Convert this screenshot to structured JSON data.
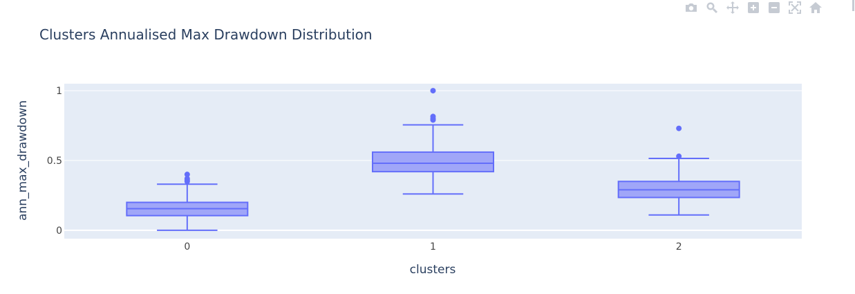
{
  "chart_data": {
    "type": "box",
    "title": "Clusters Annualised Max Drawdown Distribution",
    "xlabel": "clusters",
    "ylabel": "ann_max_drawdown",
    "categories": [
      "0",
      "1",
      "2"
    ],
    "yticks": [
      {
        "value": 0,
        "label": "0"
      },
      {
        "value": 0.5,
        "label": "0.5"
      },
      {
        "value": 1,
        "label": "1"
      }
    ],
    "ylim": [
      -0.06,
      1.05
    ],
    "grid": true,
    "boxes": [
      {
        "category": "0",
        "lower_whisker": 0.0,
        "q1": 0.105,
        "median": 0.155,
        "q3": 0.2,
        "upper_whisker": 0.33,
        "outliers": [
          0.35,
          0.36,
          0.37,
          0.4
        ]
      },
      {
        "category": "1",
        "lower_whisker": 0.26,
        "q1": 0.42,
        "median": 0.48,
        "q3": 0.56,
        "upper_whisker": 0.755,
        "outliers": [
          0.79,
          0.8,
          0.815,
          1.0
        ]
      },
      {
        "category": "2",
        "lower_whisker": 0.11,
        "q1": 0.235,
        "median": 0.29,
        "q3": 0.35,
        "upper_whisker": 0.515,
        "outliers": [
          0.53,
          0.73
        ]
      }
    ],
    "colors": {
      "line": "#636efa",
      "fill": "#a0a6f8",
      "plot_bg": "#e5ecf6",
      "grid": "#ffffff",
      "text": "#2a3f5f",
      "axis_label": "#444444"
    }
  },
  "modebar": {
    "icons": [
      "camera-icon",
      "zoom-icon",
      "pan-icon",
      "zoom-in-icon",
      "zoom-out-icon",
      "autoscale-icon",
      "home-icon"
    ],
    "color": "#c6cbd3"
  }
}
